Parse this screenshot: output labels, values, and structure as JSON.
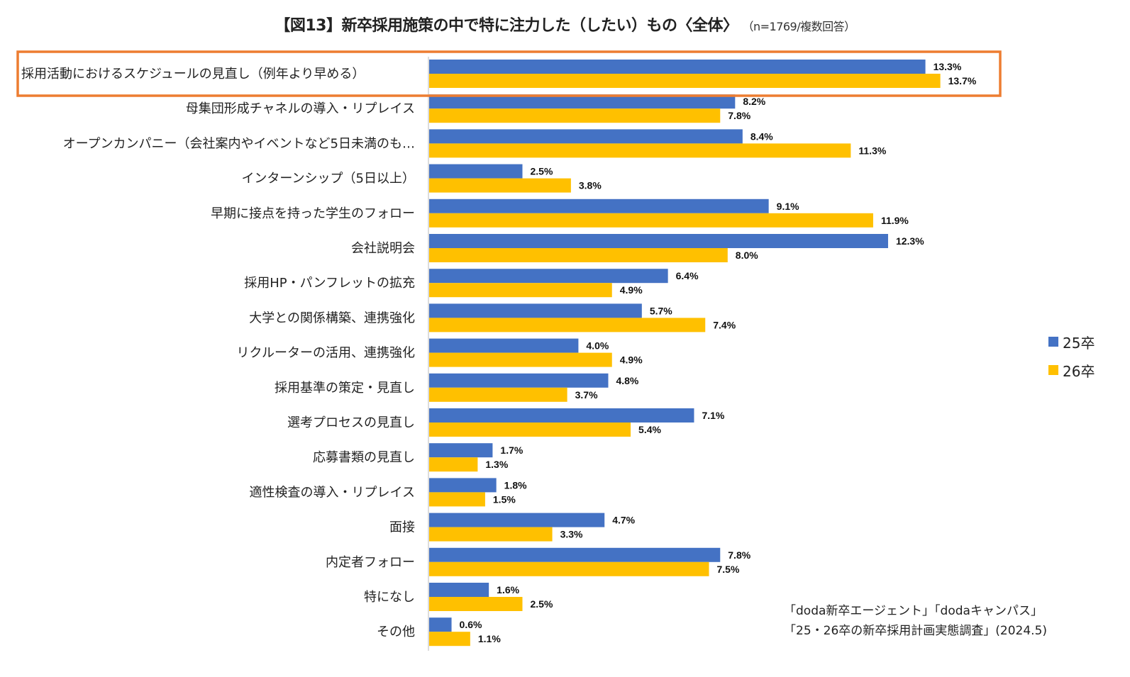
{
  "chart_data": {
    "type": "bar",
    "orientation": "horizontal",
    "title": "【図13】新卒採用施策の中で特に注力した（したい）もの〈全体〉",
    "subtitle": "（n=1769/複数回答）",
    "xlabel": "",
    "ylabel": "",
    "xlim": [
      0,
      14
    ],
    "grid": false,
    "legend_position": "right",
    "value_format": "percent_1dp",
    "highlighted_category_index": 0,
    "highlight_color": "#ED7D31",
    "categories": [
      "採用活動におけるスケジュールの見直し（例年より早める）",
      "母集団形成チャネルの導入・リプレイス",
      "オープンカンパニー（会社案内やイベントなど5日未満のも…",
      "インターンシップ（5日以上）",
      "早期に接点を持った学生のフォロー",
      "会社説明会",
      "採用HP・パンフレットの拡充",
      "大学との関係構築、連携強化",
      "リクルーターの活用、連携強化",
      "採用基準の策定・見直し",
      "選考プロセスの見直し",
      "応募書類の見直し",
      "適性検査の導入・リプレイス",
      "面接",
      "内定者フォロー",
      "特になし",
      "その他"
    ],
    "series": [
      {
        "name": "25卒",
        "color": "#4472C4",
        "values": [
          13.3,
          8.2,
          8.4,
          2.5,
          9.1,
          12.3,
          6.4,
          5.7,
          4.0,
          4.8,
          7.1,
          1.7,
          1.8,
          4.7,
          7.8,
          1.6,
          0.6
        ]
      },
      {
        "name": "26卒",
        "color": "#FFC000",
        "values": [
          13.7,
          7.8,
          11.3,
          3.8,
          11.9,
          8.0,
          4.9,
          7.4,
          4.9,
          3.7,
          5.4,
          1.3,
          1.5,
          3.3,
          7.5,
          2.5,
          1.1
        ]
      }
    ]
  },
  "legend": [
    {
      "label": "25卒",
      "color": "#4472C4"
    },
    {
      "label": "26卒",
      "color": "#FFC000"
    }
  ],
  "source": {
    "line1": "「doda新卒エージェント」「dodaキャンパス」",
    "line2": "「25・26卒の新卒採用計画実態調査」(2024.5)"
  }
}
